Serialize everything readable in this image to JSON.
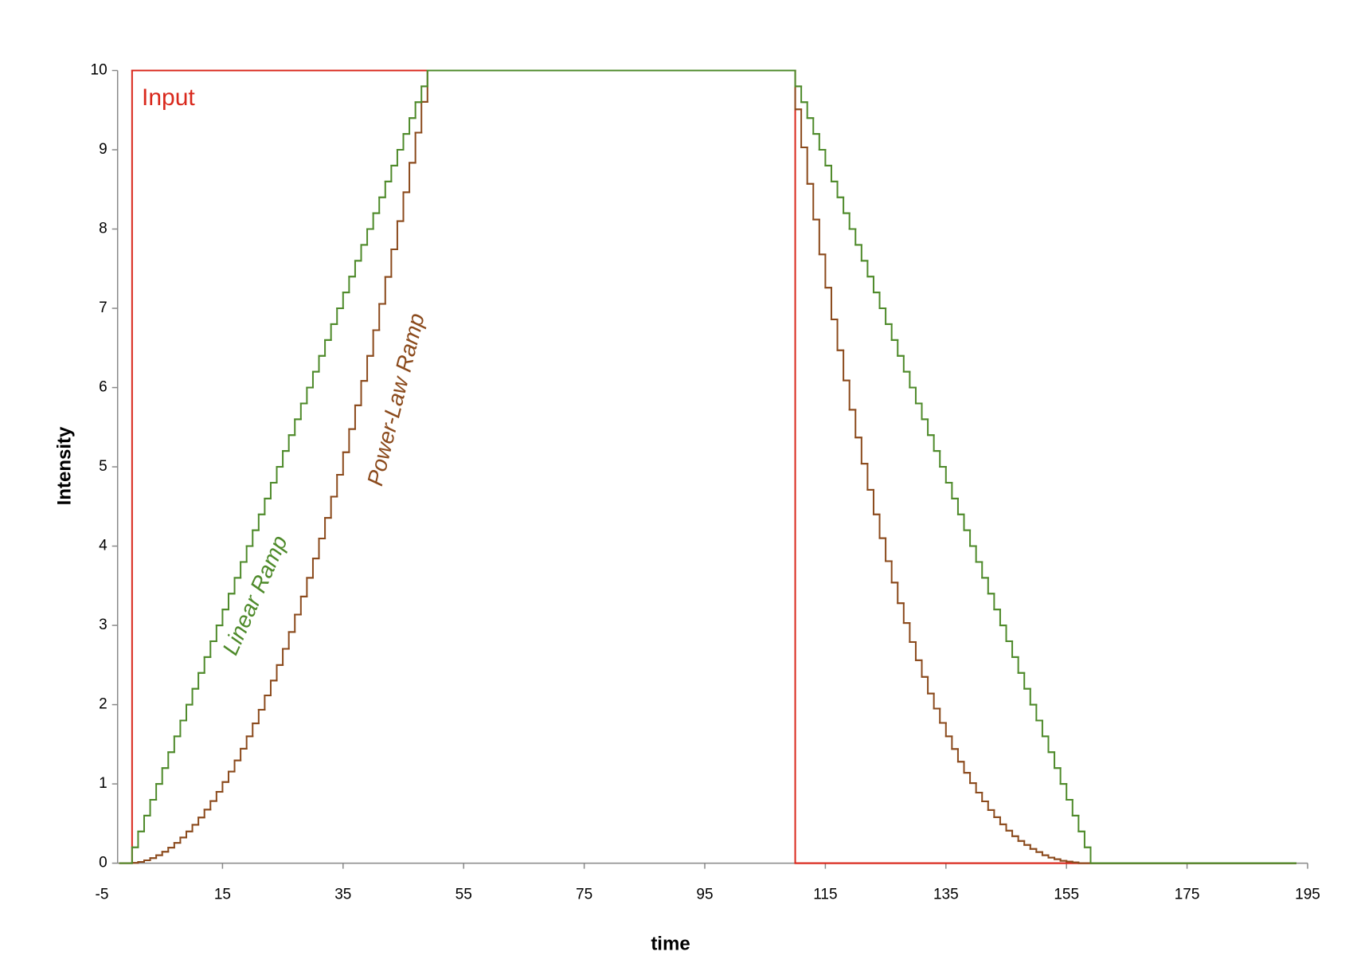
{
  "chart_data": {
    "type": "step",
    "xlabel": "time",
    "ylabel": "Intensity",
    "xlim": [
      -5,
      195
    ],
    "ylim": [
      0,
      10
    ],
    "xticks": [
      -5,
      15,
      35,
      55,
      75,
      95,
      115,
      135,
      155,
      175,
      195
    ],
    "yticks": [
      0,
      1,
      2,
      3,
      4,
      5,
      6,
      7,
      8,
      9,
      10
    ],
    "series": [
      {
        "name": "Input",
        "color": "#d9281c",
        "x": [
          -2,
          0,
          110,
          193
        ],
        "values": [
          0,
          10,
          0,
          0
        ]
      },
      {
        "name": "Linear Ramp",
        "color": "#4e8a2a",
        "x": [
          -2,
          0,
          1,
          2,
          3,
          4,
          5,
          6,
          7,
          8,
          9,
          10,
          11,
          12,
          13,
          14,
          15,
          16,
          17,
          18,
          19,
          20,
          21,
          22,
          23,
          24,
          25,
          26,
          27,
          28,
          29,
          30,
          31,
          32,
          33,
          34,
          35,
          36,
          37,
          38,
          39,
          40,
          41,
          42,
          43,
          44,
          45,
          46,
          47,
          48,
          49,
          110,
          111,
          112,
          113,
          114,
          115,
          116,
          117,
          118,
          119,
          120,
          121,
          122,
          123,
          124,
          125,
          126,
          127,
          128,
          129,
          130,
          131,
          132,
          133,
          134,
          135,
          136,
          137,
          138,
          139,
          140,
          141,
          142,
          143,
          144,
          145,
          146,
          147,
          148,
          149,
          150,
          151,
          152,
          153,
          154,
          155,
          156,
          157,
          158,
          159,
          193
        ],
        "values": [
          0,
          0.2,
          0.4,
          0.6,
          0.8,
          1,
          1.2,
          1.4,
          1.6,
          1.8,
          2,
          2.2,
          2.4,
          2.6,
          2.8,
          3,
          3.2,
          3.4,
          3.6,
          3.8,
          4,
          4.2,
          4.4,
          4.6,
          4.8,
          5,
          5.2,
          5.4,
          5.6,
          5.8,
          6,
          6.2,
          6.4,
          6.6,
          6.8,
          7,
          7.2,
          7.4,
          7.6,
          7.8,
          8,
          8.2,
          8.4,
          8.6,
          8.8,
          9,
          9.2,
          9.4,
          9.6,
          9.8,
          10,
          9.8,
          9.6,
          9.4,
          9.2,
          9,
          8.8,
          8.6,
          8.4,
          8.2,
          8,
          7.8,
          7.6,
          7.4,
          7.2,
          7,
          6.8,
          6.6,
          6.4,
          6.2,
          6,
          5.8,
          5.6,
          5.4,
          5.2,
          5,
          4.8,
          4.6,
          4.4,
          4.2,
          4,
          3.8,
          3.6,
          3.4,
          3.2,
          3,
          2.8,
          2.6,
          2.4,
          2.2,
          2,
          1.8,
          1.6,
          1.4,
          1.2,
          1,
          0.8,
          0.6,
          0.4,
          0.2,
          0,
          0
        ]
      },
      {
        "name": "Power-Law Ramp",
        "color": "#8b4a1c",
        "x": [
          -2,
          0,
          1,
          2,
          3,
          4,
          5,
          6,
          7,
          8,
          9,
          10,
          11,
          12,
          13,
          14,
          15,
          16,
          17,
          18,
          19,
          20,
          21,
          22,
          23,
          24,
          25,
          26,
          27,
          28,
          29,
          30,
          31,
          32,
          33,
          34,
          35,
          36,
          37,
          38,
          39,
          40,
          41,
          42,
          43,
          44,
          45,
          46,
          47,
          48,
          49,
          110,
          111,
          112,
          113,
          114,
          115,
          116,
          117,
          118,
          119,
          120,
          121,
          122,
          123,
          124,
          125,
          126,
          127,
          128,
          129,
          130,
          131,
          132,
          133,
          134,
          135,
          136,
          137,
          138,
          139,
          140,
          141,
          142,
          143,
          144,
          145,
          146,
          147,
          148,
          149,
          150,
          151,
          152,
          153,
          154,
          155,
          156,
          157,
          193
        ],
        "values": [
          0,
          0.004,
          0.016,
          0.036,
          0.064,
          0.1,
          0.144,
          0.196,
          0.256,
          0.324,
          0.4,
          0.484,
          0.576,
          0.676,
          0.784,
          0.9,
          1.024,
          1.156,
          1.296,
          1.444,
          1.6,
          1.764,
          1.936,
          2.116,
          2.304,
          2.5,
          2.704,
          2.916,
          3.136,
          3.364,
          3.6,
          3.844,
          4.096,
          4.356,
          4.624,
          4.9,
          5.184,
          5.476,
          5.776,
          6.084,
          6.4,
          6.724,
          7.056,
          7.396,
          7.744,
          8.1,
          8.464,
          8.836,
          9.216,
          9.604,
          10,
          9.51,
          9.03,
          8.57,
          8.12,
          7.68,
          7.26,
          6.86,
          6.47,
          6.09,
          5.72,
          5.37,
          5.04,
          4.71,
          4.4,
          4.1,
          3.81,
          3.54,
          3.28,
          3.03,
          2.79,
          2.56,
          2.35,
          2.14,
          1.95,
          1.77,
          1.6,
          1.44,
          1.28,
          1.14,
          1.01,
          0.89,
          0.78,
          0.67,
          0.58,
          0.49,
          0.41,
          0.34,
          0.28,
          0.23,
          0.18,
          0.14,
          0.1,
          0.07,
          0.05,
          0.03,
          0.02,
          0.01,
          0,
          0
        ]
      }
    ]
  }
}
